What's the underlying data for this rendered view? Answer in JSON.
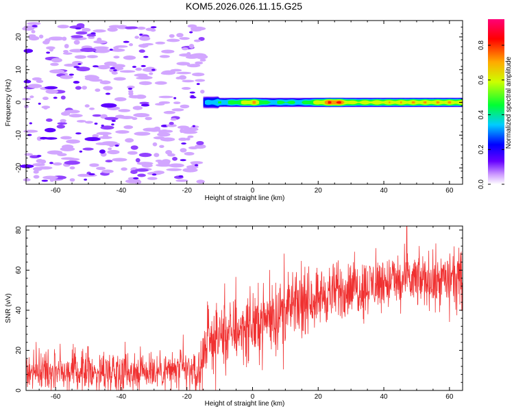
{
  "title": "KOM5.2026.026.11.15.G25",
  "chart_data": [
    {
      "type": "heatmap",
      "title": "KOM5.2026.026.11.15.G25",
      "xlabel": "Height of straight line (km)",
      "ylabel": "Frequency (Hz)",
      "xlim": [
        -69,
        64
      ],
      "ylim": [
        -25,
        25
      ],
      "xticks": [
        -60,
        -40,
        -20,
        0,
        20,
        40,
        60
      ],
      "yticks": [
        -20,
        -10,
        0,
        10,
        20
      ],
      "grid": false,
      "noise_region_x": [
        -69,
        -15
      ],
      "signal_band": {
        "x_start": -15,
        "x_end": 64,
        "frequency_center_hz": 0,
        "frequency_halfwidth_hz": 1.5,
        "amplitude_profile": [
          {
            "x": -14,
            "a": 0.35
          },
          {
            "x": -10,
            "a": 0.45
          },
          {
            "x": -5,
            "a": 0.55
          },
          {
            "x": 0,
            "a": 0.8
          },
          {
            "x": 5,
            "a": 0.45
          },
          {
            "x": 10,
            "a": 0.5
          },
          {
            "x": 15,
            "a": 0.45
          },
          {
            "x": 20,
            "a": 0.7
          },
          {
            "x": 25,
            "a": 0.95
          },
          {
            "x": 30,
            "a": 0.65
          },
          {
            "x": 40,
            "a": 0.7
          },
          {
            "x": 50,
            "a": 0.72
          },
          {
            "x": 60,
            "a": 0.72
          },
          {
            "x": 64,
            "a": 0.7
          }
        ]
      },
      "colorbar": {
        "label": "Normalized spectral amplitude",
        "range": [
          0,
          0.95
        ],
        "ticks": [
          "0.0",
          "0.2",
          "0.4",
          "0.6",
          "0.8"
        ]
      }
    },
    {
      "type": "line",
      "xlabel": "Height of straight line (km)",
      "ylabel": "SNR (v/v)",
      "xlim": [
        -69,
        64
      ],
      "ylim": [
        0,
        82
      ],
      "xticks": [
        -60,
        -40,
        -20,
        0,
        20,
        40,
        60
      ],
      "yticks": [
        0,
        20,
        40,
        60,
        80
      ],
      "grid": false,
      "color": "#f03030",
      "trend": [
        {
          "x": -69,
          "mean": 10,
          "spread": 9
        },
        {
          "x": -40,
          "mean": 10,
          "spread": 9
        },
        {
          "x": -16,
          "mean": 10,
          "spread": 9
        },
        {
          "x": -14,
          "mean": 25,
          "spread": 13
        },
        {
          "x": 0,
          "mean": 33,
          "spread": 15
        },
        {
          "x": 20,
          "mean": 47,
          "spread": 13
        },
        {
          "x": 40,
          "mean": 54,
          "spread": 12
        },
        {
          "x": 64,
          "mean": 56,
          "spread": 12
        }
      ],
      "peak": {
        "x": 47,
        "y": 82
      }
    }
  ]
}
